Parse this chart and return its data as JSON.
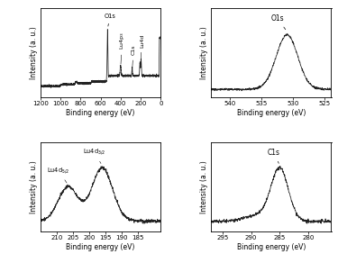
{
  "subplot1": {
    "xlabel": "Binding energy (eV)",
    "ylabel": "Intensity (a. u.)",
    "xlim": [
      1200,
      0
    ],
    "xticks": [
      1200,
      1000,
      800,
      600,
      400,
      200,
      0
    ]
  },
  "subplot2": {
    "xlabel": "Binding energy (eV)",
    "ylabel": "Intensity (a. u.)",
    "xlim": [
      543,
      524
    ],
    "xticks": [
      540,
      535,
      530,
      525
    ]
  },
  "subplot3": {
    "xlabel": "Binding energy (eV)",
    "ylabel": "Intensity (a. u.)",
    "xlim": [
      215,
      178
    ],
    "xticks": [
      210,
      205,
      200,
      195,
      190,
      185
    ]
  },
  "subplot4": {
    "xlabel": "Binding energy (eV)",
    "ylabel": "Intensity (a. u.)",
    "xlim": [
      297,
      276
    ],
    "xticks": [
      295,
      290,
      285,
      280
    ]
  },
  "line_color": "#222222",
  "noise_seed": 42,
  "figsize": [
    3.75,
    2.92
  ],
  "dpi": 100
}
